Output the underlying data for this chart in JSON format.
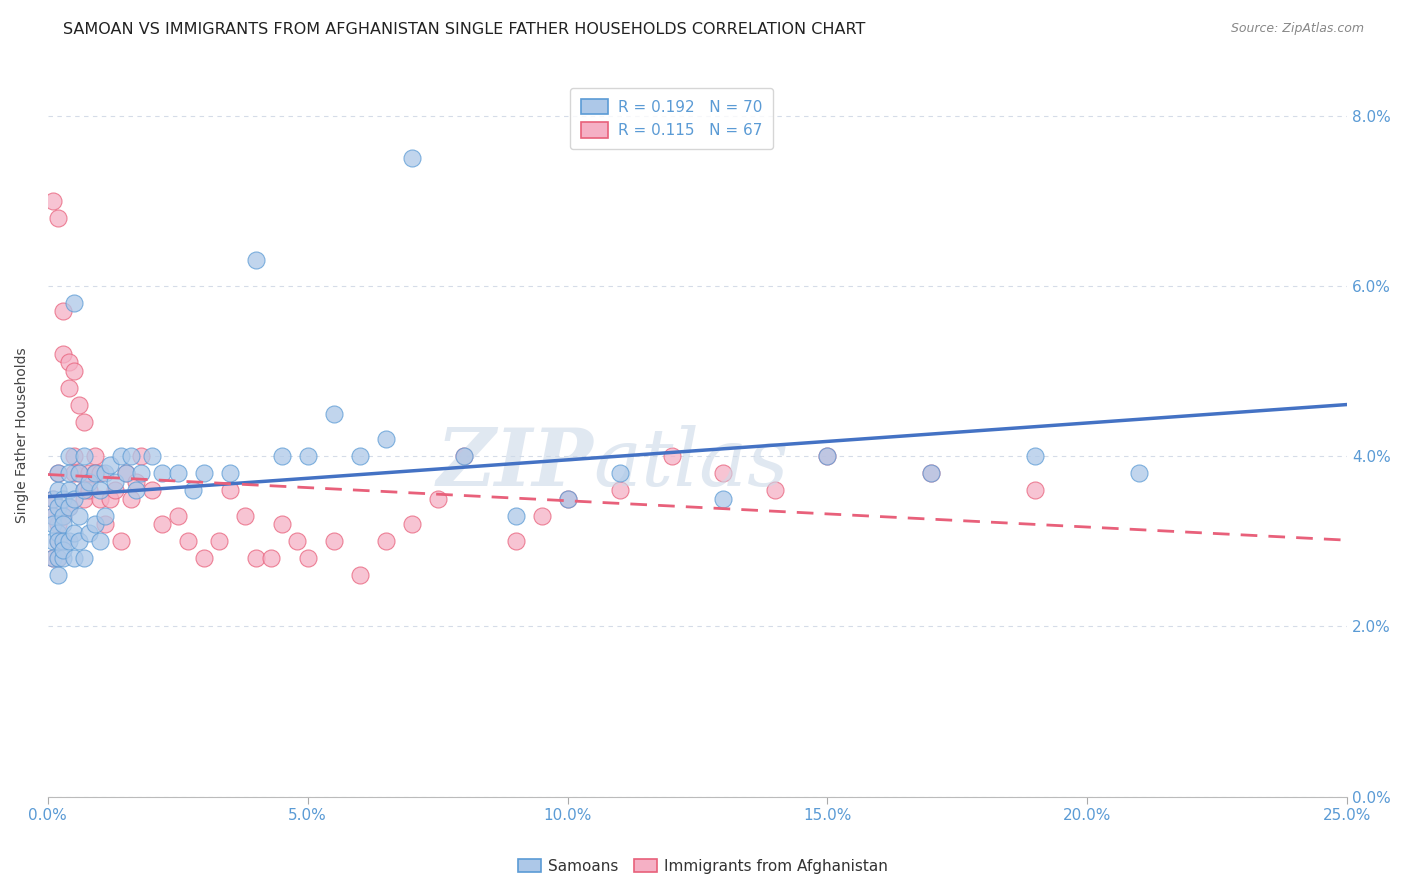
{
  "title": "SAMOAN VS IMMIGRANTS FROM AFGHANISTAN SINGLE FATHER HOUSEHOLDS CORRELATION CHART",
  "source": "Source: ZipAtlas.com",
  "ylabel_label": "Single Father Households",
  "samoan_color": "#adc8e8",
  "afghan_color": "#f5b0c5",
  "samoan_edge_color": "#5b9bd5",
  "afghan_edge_color": "#e8607a",
  "samoan_line_color": "#4472c4",
  "afghan_line_color": "#e8607a",
  "tick_color": "#5b9bd5",
  "grid_color": "#d5dce8",
  "background_color": "#ffffff",
  "watermark_color": "#ccd9e8",
  "xlim": [
    0.0,
    0.25
  ],
  "ylim": [
    0.0,
    0.085
  ],
  "xlabel_vals": [
    0.0,
    0.05,
    0.1,
    0.15,
    0.2,
    0.25
  ],
  "ylabel_vals": [
    0.0,
    0.02,
    0.04,
    0.06,
    0.08
  ],
  "samoan_x": [
    0.001,
    0.001,
    0.001,
    0.001,
    0.001,
    0.002,
    0.002,
    0.002,
    0.002,
    0.002,
    0.002,
    0.002,
    0.003,
    0.003,
    0.003,
    0.003,
    0.003,
    0.003,
    0.004,
    0.004,
    0.004,
    0.004,
    0.004,
    0.005,
    0.005,
    0.005,
    0.005,
    0.006,
    0.006,
    0.006,
    0.007,
    0.007,
    0.007,
    0.008,
    0.008,
    0.009,
    0.009,
    0.01,
    0.01,
    0.011,
    0.011,
    0.012,
    0.013,
    0.014,
    0.015,
    0.016,
    0.017,
    0.018,
    0.02,
    0.022,
    0.025,
    0.028,
    0.03,
    0.035,
    0.04,
    0.045,
    0.05,
    0.055,
    0.06,
    0.065,
    0.07,
    0.08,
    0.09,
    0.1,
    0.11,
    0.13,
    0.15,
    0.17,
    0.19,
    0.21
  ],
  "samoan_y": [
    0.03,
    0.035,
    0.033,
    0.028,
    0.032,
    0.031,
    0.034,
    0.036,
    0.028,
    0.03,
    0.026,
    0.038,
    0.033,
    0.03,
    0.032,
    0.035,
    0.028,
    0.029,
    0.036,
    0.04,
    0.03,
    0.038,
    0.034,
    0.058,
    0.035,
    0.031,
    0.028,
    0.038,
    0.033,
    0.03,
    0.04,
    0.036,
    0.028,
    0.037,
    0.031,
    0.038,
    0.032,
    0.036,
    0.03,
    0.038,
    0.033,
    0.039,
    0.037,
    0.04,
    0.038,
    0.04,
    0.036,
    0.038,
    0.04,
    0.038,
    0.038,
    0.036,
    0.038,
    0.038,
    0.063,
    0.04,
    0.04,
    0.045,
    0.04,
    0.042,
    0.075,
    0.04,
    0.033,
    0.035,
    0.038,
    0.035,
    0.04,
    0.038,
    0.04,
    0.038
  ],
  "afghan_x": [
    0.001,
    0.001,
    0.001,
    0.001,
    0.002,
    0.002,
    0.002,
    0.002,
    0.002,
    0.003,
    0.003,
    0.003,
    0.003,
    0.004,
    0.004,
    0.004,
    0.005,
    0.005,
    0.005,
    0.006,
    0.006,
    0.007,
    0.007,
    0.007,
    0.008,
    0.008,
    0.009,
    0.009,
    0.01,
    0.01,
    0.011,
    0.012,
    0.013,
    0.014,
    0.015,
    0.016,
    0.017,
    0.018,
    0.02,
    0.022,
    0.025,
    0.027,
    0.03,
    0.033,
    0.035,
    0.038,
    0.04,
    0.043,
    0.045,
    0.048,
    0.05,
    0.055,
    0.06,
    0.065,
    0.07,
    0.075,
    0.08,
    0.09,
    0.095,
    0.1,
    0.11,
    0.12,
    0.13,
    0.14,
    0.15,
    0.17,
    0.19
  ],
  "afghan_y": [
    0.035,
    0.07,
    0.033,
    0.028,
    0.068,
    0.038,
    0.032,
    0.028,
    0.03,
    0.057,
    0.052,
    0.033,
    0.03,
    0.051,
    0.048,
    0.034,
    0.04,
    0.038,
    0.05,
    0.046,
    0.038,
    0.044,
    0.036,
    0.035,
    0.038,
    0.036,
    0.04,
    0.038,
    0.035,
    0.038,
    0.032,
    0.035,
    0.036,
    0.03,
    0.038,
    0.035,
    0.037,
    0.04,
    0.036,
    0.032,
    0.033,
    0.03,
    0.028,
    0.03,
    0.036,
    0.033,
    0.028,
    0.028,
    0.032,
    0.03,
    0.028,
    0.03,
    0.026,
    0.03,
    0.032,
    0.035,
    0.04,
    0.03,
    0.033,
    0.035,
    0.036,
    0.04,
    0.038,
    0.036,
    0.04,
    0.038,
    0.036
  ],
  "title_fontsize": 11.5,
  "source_fontsize": 9,
  "tick_fontsize": 11,
  "ylabel_fontsize": 10,
  "legend_fontsize": 11
}
